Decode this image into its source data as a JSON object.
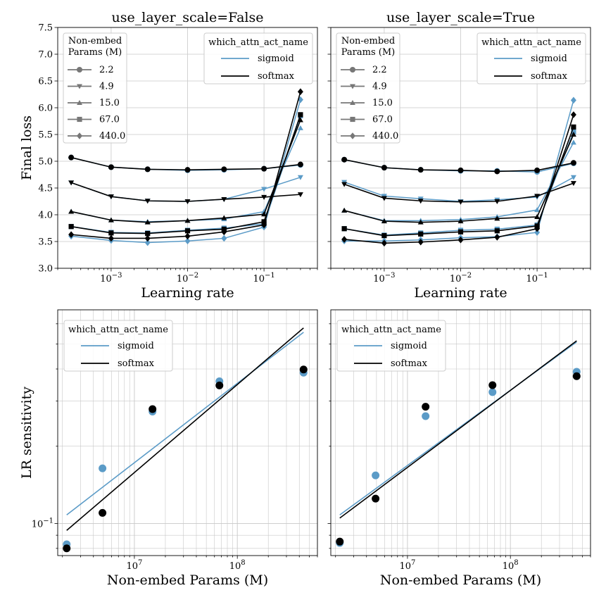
{
  "colors": {
    "sigmoid": "#5b9bc7",
    "softmax": "#000000",
    "grid": "#c8c8c8",
    "legend_param": "#777777"
  },
  "chart_data": [
    {
      "type": "line",
      "title": "use_layer_scale=False",
      "xlabel": "Learning rate",
      "ylabel": "Final loss",
      "xscale": "log",
      "xlim": [
        0.0002,
        0.5
      ],
      "ylim": [
        3.0,
        7.5
      ],
      "xticks": [
        {
          "value": 0.001,
          "label": "10",
          "exp": "−3"
        },
        {
          "value": 0.01,
          "label": "10",
          "exp": "−2"
        },
        {
          "value": 0.1,
          "label": "10",
          "exp": "−1"
        }
      ],
      "yticks": [
        "3.0",
        "3.5",
        "4.0",
        "4.5",
        "5.0",
        "5.5",
        "6.0",
        "6.5",
        "7.0",
        "7.5"
      ],
      "x": [
        0.0003,
        0.001,
        0.003,
        0.01,
        0.03,
        0.1,
        0.3
      ],
      "legend_params": {
        "title": [
          "Non-embed",
          "Params (M)"
        ],
        "entries": [
          {
            "label": "2.2",
            "marker": "circle"
          },
          {
            "label": "4.9",
            "marker": "tri_down"
          },
          {
            "label": "15.0",
            "marker": "tri_up"
          },
          {
            "label": "67.0",
            "marker": "square"
          },
          {
            "label": "440.0",
            "marker": "diamond"
          }
        ]
      },
      "legend_act": {
        "title": "which_attn_act_name",
        "entries": [
          "sigmoid",
          "softmax"
        ]
      },
      "series": [
        {
          "name": "sigmoid",
          "params": "2.2",
          "marker": "circle",
          "values": [
            5.07,
            4.89,
            4.85,
            4.83,
            4.84,
            4.86,
            4.93
          ]
        },
        {
          "name": "sigmoid",
          "params": "4.9",
          "marker": "tri_down",
          "values": [
            4.6,
            4.34,
            4.26,
            4.25,
            4.29,
            4.48,
            4.7
          ]
        },
        {
          "name": "sigmoid",
          "params": "15.0",
          "marker": "tri_up",
          "values": [
            4.06,
            3.9,
            3.87,
            3.89,
            3.92,
            4.06,
            5.62
          ]
        },
        {
          "name": "sigmoid",
          "params": "67.0",
          "marker": "square",
          "values": [
            3.78,
            3.67,
            3.66,
            3.71,
            3.75,
            3.83,
            5.85
          ]
        },
        {
          "name": "sigmoid",
          "params": "440.0",
          "marker": "diamond",
          "values": [
            3.6,
            3.52,
            3.48,
            3.51,
            3.56,
            3.77,
            6.15
          ]
        },
        {
          "name": "softmax",
          "params": "2.2",
          "marker": "circle",
          "values": [
            5.07,
            4.89,
            4.85,
            4.84,
            4.85,
            4.86,
            4.94
          ]
        },
        {
          "name": "softmax",
          "params": "4.9",
          "marker": "tri_down",
          "values": [
            4.6,
            4.34,
            4.26,
            4.25,
            4.29,
            4.33,
            4.38
          ]
        },
        {
          "name": "softmax",
          "params": "15.0",
          "marker": "tri_up",
          "values": [
            4.06,
            3.9,
            3.86,
            3.89,
            3.94,
            4.01,
            5.77
          ]
        },
        {
          "name": "softmax",
          "params": "67.0",
          "marker": "square",
          "values": [
            3.78,
            3.66,
            3.65,
            3.7,
            3.73,
            3.87,
            5.87
          ]
        },
        {
          "name": "softmax",
          "params": "440.0",
          "marker": "diamond",
          "values": [
            3.63,
            3.56,
            3.56,
            3.6,
            3.68,
            3.81,
            6.3
          ]
        }
      ]
    },
    {
      "type": "line",
      "title": "use_layer_scale=True",
      "xlabel": "Learning rate",
      "ylabel": "",
      "xscale": "log",
      "xlim": [
        0.0002,
        0.5
      ],
      "ylim": [
        3.0,
        7.5
      ],
      "xticks": [
        {
          "value": 0.001,
          "label": "10",
          "exp": "−3"
        },
        {
          "value": 0.01,
          "label": "10",
          "exp": "−2"
        },
        {
          "value": 0.1,
          "label": "10",
          "exp": "−1"
        }
      ],
      "yticks": [],
      "x": [
        0.0003,
        0.001,
        0.003,
        0.01,
        0.03,
        0.1,
        0.3
      ],
      "legend_params": {
        "title": [
          "Non-embed",
          "Params (M)"
        ],
        "entries": [
          {
            "label": "2.2",
            "marker": "circle"
          },
          {
            "label": "4.9",
            "marker": "tri_down"
          },
          {
            "label": "15.0",
            "marker": "tri_up"
          },
          {
            "label": "67.0",
            "marker": "square"
          },
          {
            "label": "440.0",
            "marker": "diamond"
          }
        ]
      },
      "legend_act": {
        "title": "which_attn_act_name",
        "entries": [
          "sigmoid",
          "softmax"
        ]
      },
      "series": [
        {
          "name": "sigmoid",
          "params": "2.2",
          "marker": "circle",
          "values": [
            5.03,
            4.88,
            4.84,
            4.82,
            4.82,
            4.8,
            4.96
          ]
        },
        {
          "name": "sigmoid",
          "params": "4.9",
          "marker": "tri_down",
          "values": [
            4.61,
            4.35,
            4.3,
            4.25,
            4.28,
            4.33,
            4.7
          ]
        },
        {
          "name": "sigmoid",
          "params": "15.0",
          "marker": "tri_up",
          "values": [
            4.08,
            3.89,
            3.89,
            3.91,
            3.96,
            4.09,
            5.35
          ]
        },
        {
          "name": "sigmoid",
          "params": "67.0",
          "marker": "square",
          "values": [
            3.74,
            3.62,
            3.66,
            3.71,
            3.73,
            3.81,
            5.55
          ]
        },
        {
          "name": "sigmoid",
          "params": "440.0",
          "marker": "diamond",
          "values": [
            3.51,
            3.51,
            3.53,
            3.57,
            3.59,
            3.67,
            6.14
          ]
        },
        {
          "name": "softmax",
          "params": "2.2",
          "marker": "circle",
          "values": [
            5.03,
            4.88,
            4.84,
            4.83,
            4.81,
            4.83,
            4.97
          ]
        },
        {
          "name": "softmax",
          "params": "4.9",
          "marker": "tri_down",
          "values": [
            4.57,
            4.31,
            4.26,
            4.24,
            4.25,
            4.35,
            4.59
          ]
        },
        {
          "name": "softmax",
          "params": "15.0",
          "marker": "tri_up",
          "values": [
            4.08,
            3.88,
            3.86,
            3.88,
            3.93,
            3.96,
            5.5
          ]
        },
        {
          "name": "softmax",
          "params": "67.0",
          "marker": "square",
          "values": [
            3.74,
            3.61,
            3.64,
            3.68,
            3.7,
            3.79,
            5.64
          ]
        },
        {
          "name": "softmax",
          "params": "440.0",
          "marker": "diamond",
          "values": [
            3.54,
            3.47,
            3.49,
            3.53,
            3.58,
            3.74,
            5.87
          ]
        }
      ]
    },
    {
      "type": "scatter",
      "title": "",
      "xlabel": "Non-embed Params (M)",
      "ylabel": "LR sensitivity",
      "xscale": "log",
      "yscale": "log",
      "xlim": [
        1800000,
        600000000
      ],
      "ylim": [
        0.075,
        0.68
      ],
      "xticks": [
        {
          "value": 10000000,
          "label": "10",
          "exp": "7"
        },
        {
          "value": 100000000,
          "label": "10",
          "exp": "8"
        }
      ],
      "yticks": [
        {
          "value": 0.1,
          "label": "10",
          "exp": "−1"
        }
      ],
      "legend_act": {
        "title": "which_attn_act_name",
        "entries": [
          "sigmoid",
          "softmax"
        ]
      },
      "series": [
        {
          "name": "sigmoid",
          "x": [
            2200000,
            4900000,
            15000000,
            67000000,
            440000000
          ],
          "y": [
            0.083,
            0.164,
            0.273,
            0.358,
            0.387
          ],
          "fit": {
            "x": [
              2200000,
              440000000
            ],
            "y": [
              0.108,
              0.556
            ]
          }
        },
        {
          "name": "softmax",
          "x": [
            2200000,
            4900000,
            15000000,
            67000000,
            440000000
          ],
          "y": [
            0.08,
            0.11,
            0.279,
            0.345,
            0.398
          ],
          "fit": {
            "x": [
              2200000,
              440000000
            ],
            "y": [
              0.094,
              0.578
            ]
          }
        }
      ]
    },
    {
      "type": "scatter",
      "title": "",
      "xlabel": "Non-embed Params (M)",
      "ylabel": "",
      "xscale": "log",
      "yscale": "log",
      "xlim": [
        1800000,
        600000000
      ],
      "ylim": [
        0.075,
        0.68
      ],
      "xticks": [
        {
          "value": 10000000,
          "label": "10",
          "exp": "7"
        },
        {
          "value": 100000000,
          "label": "10",
          "exp": "8"
        }
      ],
      "yticks": [],
      "legend_act": {
        "title": "which_attn_act_name",
        "entries": [
          "sigmoid",
          "softmax"
        ]
      },
      "series": [
        {
          "name": "sigmoid",
          "x": [
            2200000,
            4900000,
            15000000,
            67000000,
            440000000
          ],
          "y": [
            0.084,
            0.154,
            0.262,
            0.325,
            0.39
          ],
          "fit": {
            "x": [
              2200000,
              440000000
            ],
            "y": [
              0.108,
              0.51
            ]
          }
        },
        {
          "name": "softmax",
          "x": [
            2200000,
            4900000,
            15000000,
            67000000,
            440000000
          ],
          "y": [
            0.085,
            0.125,
            0.285,
            0.346,
            0.375
          ],
          "fit": {
            "x": [
              2200000,
              440000000
            ],
            "y": [
              0.105,
              0.515
            ]
          }
        }
      ]
    }
  ]
}
